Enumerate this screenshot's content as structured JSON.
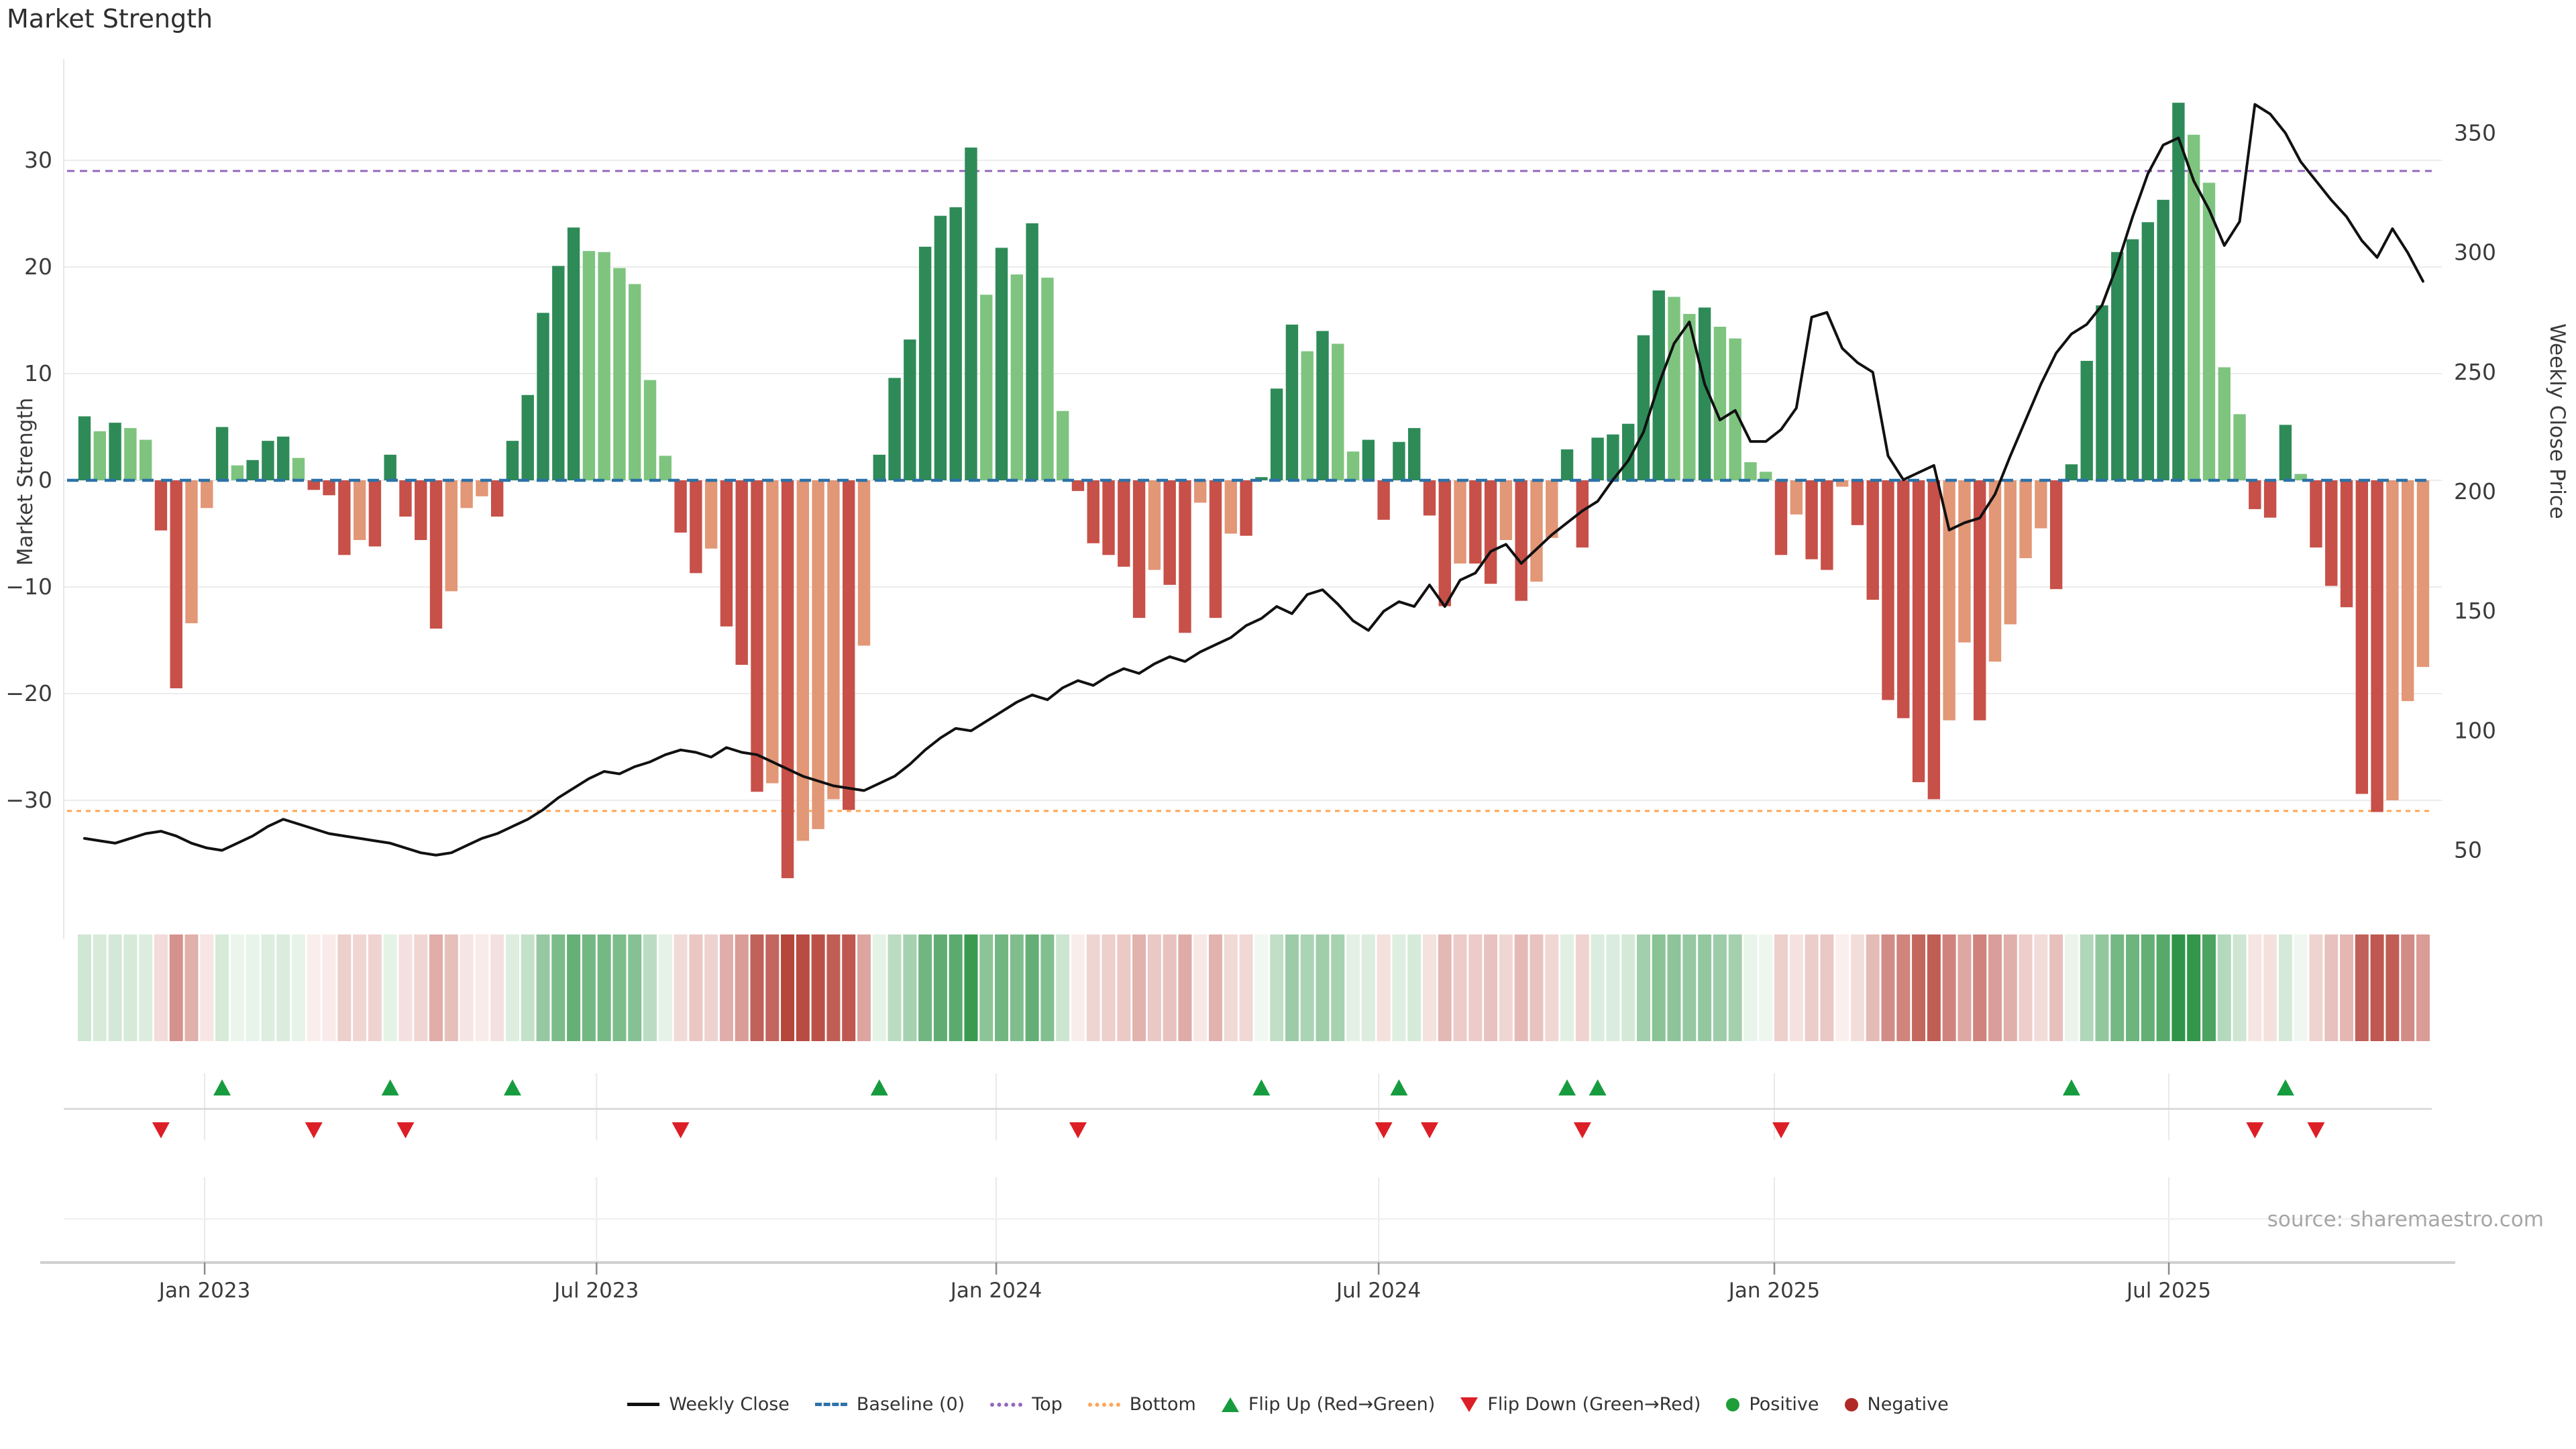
{
  "title": "Market Strength",
  "source": "source: sharemaestro.com",
  "axes": {
    "left_label": "Market Strength",
    "right_label": "Weekly Close Price",
    "left_ticks": [
      30,
      20,
      10,
      0,
      -10,
      -20,
      -30
    ],
    "right_ticks": [
      350,
      300,
      250,
      200,
      150,
      100,
      50
    ],
    "x_ticks": [
      {
        "label": "Jan 2023",
        "week": 7.86
      },
      {
        "label": "Jul 2023",
        "week": 33.5
      },
      {
        "label": "Jan 2024",
        "week": 59.65
      },
      {
        "label": "Jul 2024",
        "week": 84.67
      },
      {
        "label": "Jan 2025",
        "week": 110.56
      },
      {
        "label": "Jul 2025",
        "week": 136.37
      }
    ]
  },
  "reference_lines": {
    "baseline": {
      "label": "Baseline (0)",
      "value": 0,
      "color": "#2d72a8"
    },
    "top": {
      "label": "Top",
      "value": 29,
      "color": "#9467bd"
    },
    "bottom": {
      "label": "Bottom",
      "value": -31,
      "color": "#ffa556"
    }
  },
  "legend": [
    {
      "label": "Weekly Close",
      "swatch": "line",
      "color": "#111111"
    },
    {
      "label": "Baseline (0)",
      "swatch": "dash",
      "color": "#2d72a8"
    },
    {
      "label": "Top",
      "swatch": "dot",
      "color": "#9467bd"
    },
    {
      "label": "Bottom",
      "swatch": "dot",
      "color": "#ffa556"
    },
    {
      "label": "Flip Up (Red→Green)",
      "swatch": "tri-up",
      "color": "#169c3e"
    },
    {
      "label": "Flip Down (Green→Red)",
      "swatch": "tri-dn",
      "color": "#dc1f26"
    },
    {
      "label": "Positive",
      "swatch": "circle",
      "color": "#1e9e38"
    },
    {
      "label": "Negative",
      "swatch": "circle",
      "color": "#b02a25"
    }
  ],
  "colors": {
    "bar_pos_dark": "#2e8b57",
    "bar_pos_light": "#7ec47f",
    "bar_neg_dark": "#c75049",
    "bar_neg_light": "#e29777",
    "close_line": "#111111",
    "heat_pos_deep": "#2f9447",
    "heat_neg_deep": "#b6453c",
    "grid": "#ececec",
    "spine": "#d0d0d0"
  },
  "chart_data": {
    "type": "combo_bar_line",
    "x_unit": "week",
    "n_weeks": 154,
    "date_range": "Nov 2022 - Oct 2025",
    "strength_ylim": [
      -43,
      39.5
    ],
    "price_ylim": [
      30,
      380
    ],
    "series": [
      {
        "name": "Market Strength",
        "type": "bar",
        "axis": "left",
        "values": [
          6.0,
          4.6,
          5.4,
          4.9,
          3.8,
          -4.7,
          -19.5,
          -13.4,
          -2.6,
          5.0,
          1.4,
          1.9,
          3.7,
          4.1,
          2.1,
          -0.9,
          -1.4,
          -7.0,
          -5.6,
          -6.2,
          2.4,
          -3.4,
          -5.6,
          -13.9,
          -10.4,
          -2.6,
          -1.5,
          -3.4,
          3.7,
          8.0,
          15.7,
          20.1,
          23.7,
          21.5,
          21.4,
          19.9,
          18.4,
          9.4,
          2.3,
          -4.9,
          -8.7,
          -6.4,
          -13.7,
          -17.3,
          -29.2,
          -28.4,
          -37.3,
          -33.8,
          -32.7,
          -29.9,
          -30.9,
          -15.5,
          2.4,
          9.6,
          13.2,
          21.9,
          24.8,
          25.6,
          31.2,
          17.4,
          21.8,
          19.3,
          24.1,
          19.0,
          6.5,
          -1.0,
          -5.9,
          -7.0,
          -8.1,
          -12.9,
          -8.4,
          -9.8,
          -14.3,
          -2.1,
          -12.9,
          -5.0,
          -5.2,
          0.3,
          8.6,
          14.6,
          12.1,
          14.0,
          12.8,
          2.7,
          3.8,
          -3.7,
          3.6,
          4.9,
          -3.3,
          -11.8,
          -7.8,
          -7.8,
          -9.7,
          -5.6,
          -11.3,
          -9.5,
          -5.4,
          2.9,
          -6.3,
          4.0,
          4.3,
          5.3,
          13.6,
          17.8,
          17.2,
          15.6,
          16.2,
          14.4,
          13.3,
          1.7,
          0.8,
          -7.0,
          -3.2,
          -7.4,
          -8.4,
          -0.6,
          -4.2,
          -11.2,
          -20.6,
          -22.3,
          -28.3,
          -29.9,
          -22.5,
          -15.2,
          -22.5,
          -17.0,
          -13.5,
          -7.3,
          -4.5,
          -10.2,
          1.5,
          11.2,
          16.4,
          21.4,
          22.6,
          24.2,
          26.3,
          35.4,
          32.4,
          27.9,
          10.6,
          6.2,
          -2.7,
          -3.5,
          5.2,
          0.6,
          -6.3,
          -9.9,
          -11.9,
          -29.4,
          -31.1,
          -30.0,
          -20.7,
          -17.5
        ]
      },
      {
        "name": "Weekly Close",
        "type": "line",
        "axis": "right",
        "values": [
          55,
          54,
          53,
          55,
          57,
          58,
          56,
          53,
          51,
          50,
          53,
          56,
          60,
          63,
          61,
          59,
          57,
          56,
          55,
          54,
          53,
          51,
          49,
          48,
          49,
          52,
          55,
          57,
          60,
          63,
          67,
          72,
          76,
          80,
          83,
          82,
          85,
          87,
          90,
          92,
          91,
          89,
          93,
          91,
          90,
          87,
          84,
          81,
          79,
          77,
          76,
          75,
          78,
          81,
          86,
          92,
          97,
          101,
          100,
          104,
          108,
          112,
          115,
          113,
          118,
          121,
          119,
          123,
          126,
          124,
          128,
          131,
          129,
          133,
          136,
          139,
          144,
          147,
          152,
          149,
          157,
          159,
          153,
          146,
          142,
          150,
          154,
          152,
          161,
          152,
          163,
          166,
          175,
          178,
          170,
          176,
          182,
          187,
          192,
          196,
          205,
          213,
          225,
          245,
          262,
          271,
          245,
          230,
          234,
          221,
          221,
          226,
          235,
          273,
          275,
          260,
          254,
          250,
          215,
          205,
          208,
          211,
          184,
          187,
          189,
          199,
          215,
          230,
          245,
          258,
          266,
          270,
          278,
          295,
          315,
          333,
          345,
          348,
          330,
          318,
          303,
          313,
          362,
          358,
          350,
          338,
          330,
          322,
          315,
          305,
          298,
          310,
          300,
          288
        ]
      }
    ],
    "flip_up_weeks": [
      9,
      20,
      28,
      52,
      77,
      86,
      97,
      99,
      130,
      144
    ],
    "flip_down_weeks": [
      5,
      15,
      21,
      39,
      65,
      85,
      88,
      98,
      111,
      142,
      146
    ],
    "bar_shade_rule": "dark when momentum extends vs previous week, light when it fades",
    "heatmap": "same weekly strength values rendered as color intensity strip",
    "legend_position": "bottom center",
    "grid": "horizontal only in main panel; vertical month gridlines in lower panels"
  }
}
